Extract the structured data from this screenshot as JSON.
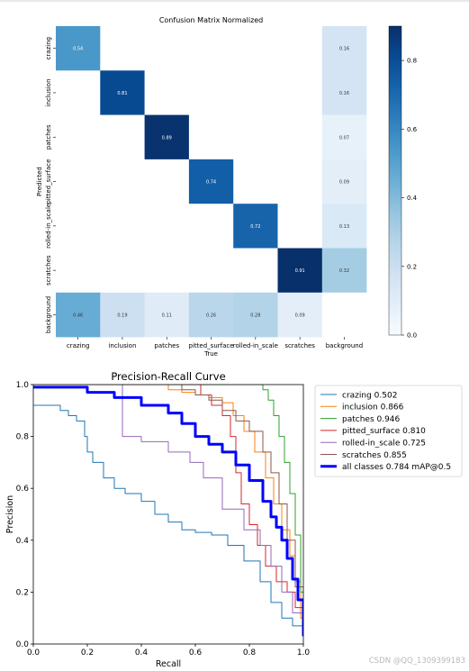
{
  "chart_data": [
    {
      "type": "heatmap",
      "title": "Confusion Matrix Normalized",
      "xlabel": "True",
      "ylabel": "Predicted",
      "labels": [
        "crazing",
        "inclusion",
        "patches",
        "pitted_surface",
        "rolled-in_scale",
        "scratches",
        "background"
      ],
      "matrix": [
        [
          0.54,
          null,
          null,
          null,
          null,
          null,
          0.16
        ],
        [
          null,
          0.81,
          null,
          null,
          null,
          null,
          0.16
        ],
        [
          null,
          null,
          0.89,
          null,
          null,
          null,
          0.07
        ],
        [
          null,
          null,
          null,
          0.74,
          null,
          null,
          0.09
        ],
        [
          null,
          null,
          null,
          null,
          0.72,
          null,
          0.13
        ],
        [
          null,
          null,
          null,
          null,
          null,
          0.91,
          0.32
        ],
        [
          0.46,
          0.19,
          0.11,
          0.26,
          0.28,
          0.09,
          null
        ]
      ],
      "colorbar": {
        "min": 0.0,
        "max": 0.9,
        "ticks": [
          "0.0",
          "0.2",
          "0.4",
          "0.6",
          "0.8"
        ]
      }
    },
    {
      "type": "line",
      "title": "Precision-Recall Curve",
      "xlabel": "Recall",
      "ylabel": "Precision",
      "xlim": [
        0,
        1
      ],
      "ylim": [
        0,
        1
      ],
      "xticks": [
        "0.0",
        "0.2",
        "0.4",
        "0.6",
        "0.8",
        "1.0"
      ],
      "yticks": [
        "0.0",
        "0.2",
        "0.4",
        "0.6",
        "0.8",
        "1.0"
      ],
      "legend_position": "outside-top-right",
      "series": [
        {
          "name": "crazing 0.502",
          "color": "#1f77b4",
          "width": 1,
          "x": [
            0,
            0.08,
            0.1,
            0.13,
            0.16,
            0.19,
            0.2,
            0.22,
            0.26,
            0.3,
            0.34,
            0.4,
            0.45,
            0.5,
            0.55,
            0.6,
            0.66,
            0.72,
            0.78,
            0.84,
            0.88,
            0.92,
            0.96,
            1.0
          ],
          "y": [
            0.92,
            0.92,
            0.9,
            0.88,
            0.86,
            0.8,
            0.74,
            0.7,
            0.64,
            0.6,
            0.58,
            0.55,
            0.5,
            0.47,
            0.44,
            0.43,
            0.42,
            0.38,
            0.32,
            0.24,
            0.16,
            0.1,
            0.07,
            0.04
          ]
        },
        {
          "name": "inclusion 0.866",
          "color": "#ff7f0e",
          "width": 1,
          "x": [
            0,
            0.44,
            0.5,
            0.55,
            0.6,
            0.65,
            0.7,
            0.74,
            0.78,
            0.82,
            0.86,
            0.89,
            0.92,
            0.95,
            0.97,
            0.99,
            1.0
          ],
          "y": [
            1.0,
            1.0,
            0.98,
            0.97,
            0.96,
            0.95,
            0.93,
            0.88,
            0.82,
            0.74,
            0.64,
            0.54,
            0.44,
            0.34,
            0.24,
            0.1,
            0.04
          ]
        },
        {
          "name": "patches 0.946",
          "color": "#2ca02c",
          "width": 1,
          "x": [
            0,
            0.82,
            0.85,
            0.87,
            0.89,
            0.91,
            0.93,
            0.95,
            0.97,
            0.99,
            1.0
          ],
          "y": [
            1.0,
            1.0,
            0.98,
            0.94,
            0.88,
            0.8,
            0.7,
            0.58,
            0.42,
            0.2,
            0.05
          ]
        },
        {
          "name": "pitted_surface 0.810",
          "color": "#d62728",
          "width": 1,
          "x": [
            0,
            0.58,
            0.62,
            0.66,
            0.7,
            0.73,
            0.75,
            0.77,
            0.8,
            0.83,
            0.86,
            0.9,
            0.94,
            0.97,
            1.0
          ],
          "y": [
            1.0,
            1.0,
            0.96,
            0.92,
            0.88,
            0.8,
            0.66,
            0.54,
            0.46,
            0.38,
            0.3,
            0.24,
            0.2,
            0.14,
            0.04
          ]
        },
        {
          "name": "rolled-in_scale 0.725",
          "color": "#9467bd",
          "width": 1,
          "x": [
            0,
            0.3,
            0.33,
            0.4,
            0.5,
            0.58,
            0.63,
            0.7,
            0.78,
            0.84,
            0.88,
            0.92,
            0.96,
            1.0
          ],
          "y": [
            1.0,
            1.0,
            0.8,
            0.78,
            0.74,
            0.7,
            0.64,
            0.52,
            0.44,
            0.38,
            0.3,
            0.2,
            0.12,
            0.04
          ]
        },
        {
          "name": "scratches 0.855",
          "color": "#8c564b",
          "width": 1,
          "x": [
            0,
            0.5,
            0.55,
            0.6,
            0.65,
            0.7,
            0.75,
            0.8,
            0.85,
            0.88,
            0.91,
            0.94,
            0.97,
            1.0
          ],
          "y": [
            1.0,
            1.0,
            0.98,
            0.96,
            0.94,
            0.9,
            0.86,
            0.82,
            0.74,
            0.66,
            0.54,
            0.4,
            0.22,
            0.04
          ]
        },
        {
          "name": "all classes 0.784 mAP@0.5",
          "color": "#0000ff",
          "width": 3,
          "x": [
            0,
            0.1,
            0.2,
            0.3,
            0.4,
            0.5,
            0.55,
            0.6,
            0.65,
            0.7,
            0.75,
            0.8,
            0.85,
            0.88,
            0.9,
            0.92,
            0.94,
            0.96,
            0.98,
            1.0
          ],
          "y": [
            0.99,
            0.99,
            0.97,
            0.95,
            0.92,
            0.89,
            0.85,
            0.8,
            0.77,
            0.74,
            0.69,
            0.63,
            0.55,
            0.49,
            0.45,
            0.4,
            0.33,
            0.25,
            0.17,
            0.03
          ]
        }
      ]
    }
  ],
  "watermark": "CSDN @QQ_1309399183"
}
